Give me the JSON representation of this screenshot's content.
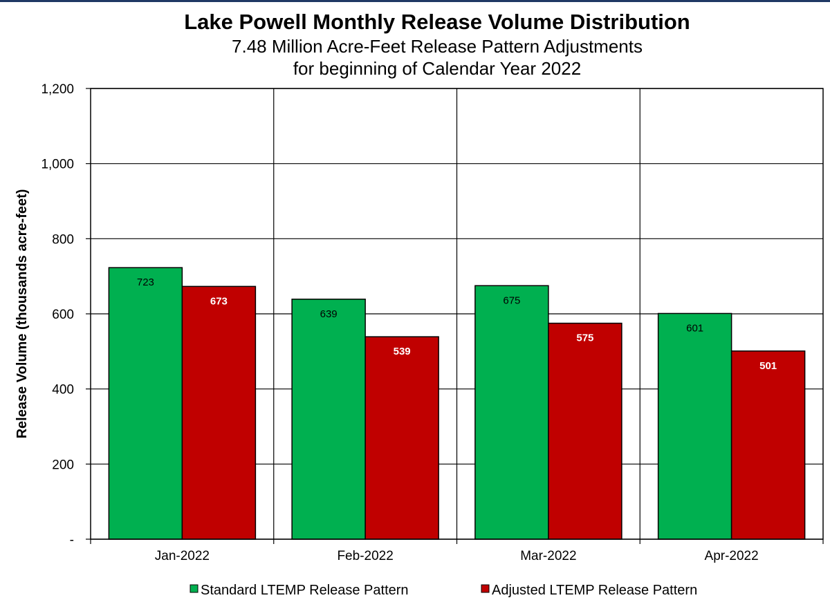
{
  "chart_data": {
    "type": "bar",
    "title": "Lake Powell Monthly Release Volume Distribution",
    "subtitle_lines": [
      "7.48 Million Acre-Feet Release Pattern Adjustments",
      "for beginning of Calendar Year 2022"
    ],
    "xlabel": "",
    "ylabel": "Release Volume (thousands acre-feet)",
    "ylim": [
      0,
      1200
    ],
    "yticks": [
      0,
      200,
      400,
      600,
      800,
      1000,
      1200
    ],
    "ytick_labels": [
      "-",
      "200",
      "400",
      "600",
      "800",
      "1,000",
      "1,200"
    ],
    "categories": [
      "Jan-2022",
      "Feb-2022",
      "Mar-2022",
      "Apr-2022"
    ],
    "series": [
      {
        "name": "Standard LTEMP Release Pattern",
        "values": [
          723,
          639,
          675,
          601
        ],
        "labels": [
          "723",
          "639",
          "675",
          "601"
        ],
        "color": "#00b050"
      },
      {
        "name": "Adjusted LTEMP Release Pattern",
        "values": [
          673,
          539,
          575,
          501
        ],
        "labels": [
          "673",
          "539",
          "575",
          "501"
        ],
        "color": "#c00000"
      }
    ],
    "grid": true,
    "legend_position": "bottom-center",
    "frame_color": "#000000"
  }
}
